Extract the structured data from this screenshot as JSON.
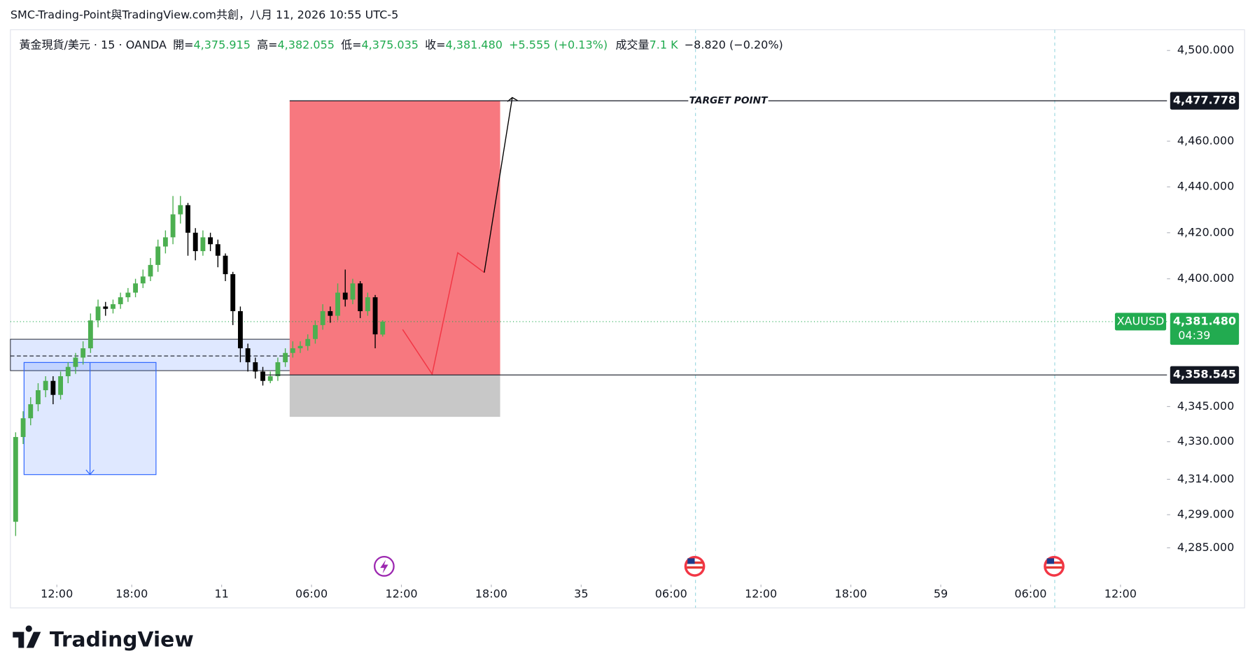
{
  "header": {
    "attribution": "SMC-Trading-Point與TradingView.com共創，八月 11, 2026 10:55 UTC-5",
    "symbol": "黃金現貨/美元 · 15 · OANDA",
    "open_label": "開=",
    "open": "4,375.915",
    "high_label": "高=",
    "high": "4,382.055",
    "low_label": "低=",
    "low": "4,375.035",
    "close_label": "收=",
    "close": "4,381.480",
    "change": "+5.555 (+0.13%)",
    "volume_label": "成交量",
    "volume": "7.1 K",
    "volume_change": "−8.820 (−0.20%)"
  },
  "footer": {
    "brand": "TradingView"
  },
  "chart_data": {
    "type": "candlestick",
    "log_scale": true,
    "up_color": "#4caf50",
    "down_color": "#000000",
    "xlim": [
      -3.1,
      74.1
    ],
    "ylim": [
      4271.5,
      4509.2
    ],
    "xticks": [
      {
        "value": 0,
        "label": "12:00"
      },
      {
        "value": 5,
        "label": "18:00"
      },
      11,
      {
        "value": 17,
        "label": "06:00"
      },
      {
        "value": 23,
        "label": "12:00"
      },
      {
        "value": 29,
        "label": "18:00"
      },
      35,
      {
        "value": 41,
        "label": "06:00"
      },
      {
        "value": 47,
        "label": "12:00"
      },
      {
        "value": 53,
        "label": "18:00"
      },
      59,
      {
        "value": 65,
        "label": "06:00"
      },
      {
        "value": 71,
        "label": "12:00"
      }
    ],
    "yticks": [
      {
        "value": 4500,
        "label": "4,500.000"
      },
      {
        "value": 4460,
        "label": "4,460.000"
      },
      {
        "value": 4440,
        "label": "4,440.000"
      },
      {
        "value": 4420,
        "label": "4,420.000"
      },
      {
        "value": 4400,
        "label": "4,400.000"
      },
      {
        "value": 4345,
        "label": "4,345.000"
      },
      {
        "value": 4330,
        "label": "4,330.000"
      },
      {
        "value": 4314,
        "label": "4,314.000"
      },
      {
        "value": 4299,
        "label": "4,299.000"
      },
      {
        "value": 4285,
        "label": "4,285.000"
      }
    ],
    "x": [
      -2.75,
      -2.25,
      -1.75,
      -1.25,
      -0.75,
      -0.25,
      0.25,
      0.75,
      1.25,
      1.75,
      2.25,
      2.75,
      3.25,
      3.75,
      4.25,
      4.75,
      5.25,
      5.75,
      6.25,
      6.75,
      7.25,
      7.75,
      8.25,
      8.75,
      9.25,
      9.75,
      10.25,
      10.75,
      11.25,
      11.75,
      12.25,
      12.75,
      13.25,
      13.75,
      14.25,
      14.75,
      15.25,
      15.75,
      16.25,
      16.75,
      17.25,
      17.75,
      18.25,
      18.75,
      19.25,
      19.75,
      20.25,
      20.75,
      21.25,
      21.75
    ],
    "open": [
      4296,
      4332,
      4340,
      4346,
      4352,
      4356,
      4350,
      4358,
      4362,
      4366,
      4370,
      4382,
      4388,
      4387,
      4389,
      4392,
      4394,
      4398,
      4401,
      4406,
      4414,
      4418,
      4428,
      4432,
      4420,
      4412,
      4418,
      4415,
      4410,
      4402,
      4386,
      4370,
      4364,
      4360,
      4356,
      4358,
      4364,
      4368,
      4370,
      4371,
      4374,
      4380,
      4386,
      4384,
      4394,
      4391,
      4398,
      4386,
      4392,
      4375.915
    ],
    "high": [
      4334,
      4343,
      4349,
      4355,
      4358,
      4358,
      4360,
      4364,
      4368,
      4373,
      4385,
      4391,
      4390,
      4391,
      4394,
      4396,
      4400,
      4404,
      4409,
      4417,
      4421,
      4436,
      4436,
      4433,
      4422,
      4421,
      4420,
      4417,
      4411,
      4403,
      4388,
      4372,
      4366,
      4362,
      4360,
      4366,
      4370,
      4373,
      4373,
      4376,
      4382,
      4389,
      4388,
      4398,
      4404,
      4400,
      4399,
      4394,
      4393,
      4382.055
    ],
    "low": [
      4290,
      4329,
      4337,
      4343,
      4349,
      4346,
      4348,
      4355,
      4359,
      4363,
      4368,
      4379,
      4384,
      4385,
      4387,
      4390,
      4392,
      4396,
      4399,
      4403,
      4411,
      4415,
      4424,
      4410,
      4408,
      4410,
      4412,
      4405,
      4399,
      4380,
      4364,
      4360,
      4357,
      4354,
      4355,
      4356,
      4362,
      4366,
      4368,
      4369,
      4372,
      4378,
      4381,
      4382,
      4388,
      4389,
      4383,
      4384,
      4370,
      4375.035
    ],
    "close": [
      4332,
      4340,
      4346,
      4352,
      4356,
      4350,
      4358,
      4362,
      4366,
      4370,
      4382,
      4388,
      4387,
      4389,
      4392,
      4394,
      4398,
      4401,
      4406,
      4414,
      4418,
      4428,
      4432,
      4420,
      4412,
      4418,
      4415,
      4410,
      4402,
      4386,
      4370,
      4364,
      4360,
      4356,
      4358,
      4364,
      4368,
      4370,
      4371,
      4374,
      4380,
      4386,
      4384,
      4394,
      4391,
      4398,
      4386,
      4392,
      4376,
      4381.48
    ],
    "zones": [
      {
        "x": [
          -3.1,
          17.15
        ],
        "y": [
          4360.4,
          4373.9
        ],
        "mid": 4366.7,
        "color": "#2962ff"
      },
      {
        "x": [
          -2.19,
          6.62
        ],
        "y": [
          4316.0,
          4363.9
        ],
        "color": "#2962ff"
      },
      {
        "x": [
          15.54,
          29.59
        ],
        "y": [
          4358.545,
          4477.778
        ],
        "color": "#f7787f"
      },
      {
        "x": [
          15.54,
          29.59
        ],
        "y": [
          4340.6,
          4358.545
        ],
        "color": "#c8c8c8"
      }
    ],
    "projection": {
      "x": [
        23.08,
        25.05,
        26.76,
        28.53
      ],
      "y": [
        4378.1,
        4358.9,
        4411.3,
        4402.7
      ],
      "color": "#f23645"
    },
    "arrow": {
      "x": [
        28.53,
        30.4
      ],
      "y": [
        4402.7,
        4479.2
      ],
      "color": "#000000"
    },
    "session_lines": [
      42.63,
      66.61
    ],
    "target": {
      "value": 4477.778,
      "label": "4,477.778",
      "text": "TARGET POINT"
    },
    "stop": {
      "value": 4358.545,
      "label": "4,358.545"
    },
    "current": {
      "value": 4381.48,
      "label": "4,381.480",
      "symbol": "XAUUSD",
      "countdown": "04:39",
      "color": "#22ab50"
    }
  }
}
